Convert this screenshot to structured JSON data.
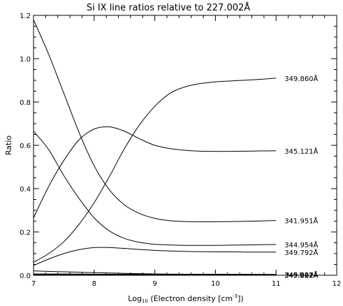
{
  "chart_data": {
    "type": "line",
    "title": "Si IX line ratios relative to 227.002Å",
    "xlabel": {
      "prefix": "Log",
      "subscript": "10",
      "main": " (Electron density [cm",
      "superscript": "-3",
      "suffix": "])"
    },
    "ylabel": "Ratio",
    "xlim": [
      7,
      12
    ],
    "ylim": [
      0,
      1.2
    ],
    "xticks": [
      7,
      8,
      9,
      10,
      11,
      12
    ],
    "xtick_labels": [
      "7",
      "8",
      "9",
      "10",
      "11",
      "12"
    ],
    "yticks": [
      0.0,
      0.2,
      0.4,
      0.6,
      0.8,
      1.0,
      1.2
    ],
    "ytick_labels": [
      "0.0",
      "0.2",
      "0.4",
      "0.6",
      "0.8",
      "1.0",
      "1.2"
    ],
    "grid": false,
    "line_color": "#000000",
    "series": [
      {
        "name": "349.860Å",
        "x": [
          7.0,
          7.25,
          7.5,
          7.75,
          8.0,
          8.25,
          8.5,
          8.75,
          9.0,
          9.25,
          9.5,
          9.75,
          10.0,
          10.25,
          10.5,
          10.75,
          11.0
        ],
        "y": [
          0.06,
          0.1,
          0.155,
          0.235,
          0.335,
          0.455,
          0.585,
          0.695,
          0.78,
          0.84,
          0.87,
          0.885,
          0.893,
          0.897,
          0.901,
          0.905,
          0.91
        ]
      },
      {
        "name": "345.121Å",
        "x": [
          7.0,
          7.25,
          7.5,
          7.75,
          8.0,
          8.25,
          8.5,
          8.75,
          9.0,
          9.25,
          9.5,
          9.75,
          10.0,
          10.25,
          10.5,
          10.75,
          11.0
        ],
        "y": [
          0.265,
          0.41,
          0.53,
          0.625,
          0.675,
          0.685,
          0.665,
          0.63,
          0.6,
          0.585,
          0.577,
          0.573,
          0.572,
          0.572,
          0.573,
          0.574,
          0.575
        ]
      },
      {
        "name": "341.951Å",
        "x": [
          7.0,
          7.25,
          7.5,
          7.75,
          8.0,
          8.25,
          8.5,
          8.75,
          9.0,
          9.25,
          9.5,
          9.75,
          10.0,
          10.25,
          10.5,
          10.75,
          11.0
        ],
        "y": [
          1.18,
          1.02,
          0.84,
          0.66,
          0.505,
          0.395,
          0.325,
          0.285,
          0.263,
          0.252,
          0.248,
          0.247,
          0.247,
          0.248,
          0.249,
          0.251,
          0.253
        ]
      },
      {
        "name": "344.954Å",
        "x": [
          7.0,
          7.25,
          7.5,
          7.75,
          8.0,
          8.25,
          8.5,
          8.75,
          9.0,
          9.25,
          9.5,
          9.75,
          10.0,
          10.25,
          10.5,
          10.75,
          11.0
        ],
        "y": [
          0.665,
          0.58,
          0.46,
          0.355,
          0.265,
          0.205,
          0.17,
          0.152,
          0.143,
          0.14,
          0.138,
          0.138,
          0.138,
          0.139,
          0.14,
          0.141,
          0.142
        ]
      },
      {
        "name": "349.792Å",
        "x": [
          7.0,
          7.25,
          7.5,
          7.75,
          8.0,
          8.25,
          8.5,
          8.75,
          9.0,
          9.25,
          9.5,
          9.75,
          10.0,
          10.25,
          10.5,
          10.75,
          11.0
        ],
        "y": [
          0.045,
          0.075,
          0.1,
          0.118,
          0.128,
          0.128,
          0.124,
          0.119,
          0.115,
          0.112,
          0.11,
          0.109,
          0.108,
          0.108,
          0.107,
          0.107,
          0.107
        ]
      },
      {
        "name": "349.862Å",
        "x": [
          7.0,
          7.5,
          8.0,
          8.5,
          9.0,
          9.5,
          10.0,
          10.5,
          11.0
        ],
        "y": [
          0.02,
          0.016,
          0.012,
          0.009,
          0.006,
          0.005,
          0.005,
          0.004,
          0.004
        ]
      },
      {
        "name": "345.322Å",
        "x": [
          7.0,
          7.5,
          8.0,
          8.5,
          9.0,
          9.5,
          10.0,
          10.5,
          11.0
        ],
        "y": [
          0.006,
          0.006,
          0.005,
          0.005,
          0.004,
          0.004,
          0.004,
          0.004,
          0.003
        ]
      },
      {
        "name": "349.221Å",
        "x": [
          7.0,
          7.5,
          8.0,
          8.5,
          9.0,
          9.5,
          10.0,
          10.5,
          11.0
        ],
        "y": [
          0.003,
          0.003,
          0.003,
          0.003,
          0.003,
          0.003,
          0.002,
          0.002,
          0.002
        ]
      }
    ]
  }
}
